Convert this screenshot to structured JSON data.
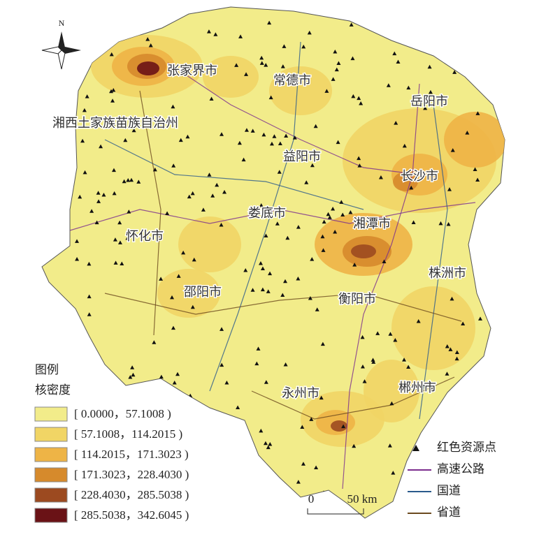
{
  "map": {
    "north": "N",
    "cities": [
      {
        "label": "张家界市"
      },
      {
        "label": "常德市"
      },
      {
        "label": "岳阳市"
      },
      {
        "label": "湘西土家族苗族自治州"
      },
      {
        "label": "益阳市"
      },
      {
        "label": "长沙市"
      },
      {
        "label": "娄底市"
      },
      {
        "label": "湘潭市"
      },
      {
        "label": "怀化市"
      },
      {
        "label": "株洲市"
      },
      {
        "label": "邵阳市"
      },
      {
        "label": "衡阳市"
      },
      {
        "label": "永州市"
      },
      {
        "label": "郴州市"
      }
    ],
    "legend": {
      "title": "图例",
      "subtitle": "核密度",
      "classes": [
        {
          "label": "[ 0.0000，57.1008 )",
          "color": "#f2ec8a"
        },
        {
          "label": "[ 57.1008，114.2015 )",
          "color": "#f1d565"
        },
        {
          "label": "[ 114.2015，171.3023 )",
          "color": "#eeb446"
        },
        {
          "label": "[ 171.3023，228.4030 )",
          "color": "#d68a2c"
        },
        {
          "label": "[ 228.4030，285.5038 )",
          "color": "#9c4a20"
        },
        {
          "label": "[ 285.5038，342.6045 )",
          "color": "#6a1216"
        }
      ],
      "symbols": [
        {
          "label": "红色资源点",
          "color": "#111111"
        },
        {
          "label": "高速公路",
          "color": "#7b2d8e"
        },
        {
          "label": "国道",
          "color": "#2a5a8c"
        },
        {
          "label": "省道",
          "color": "#6b4a1e"
        }
      ]
    },
    "scale": {
      "labels": [
        "0",
        "50 km"
      ]
    }
  }
}
